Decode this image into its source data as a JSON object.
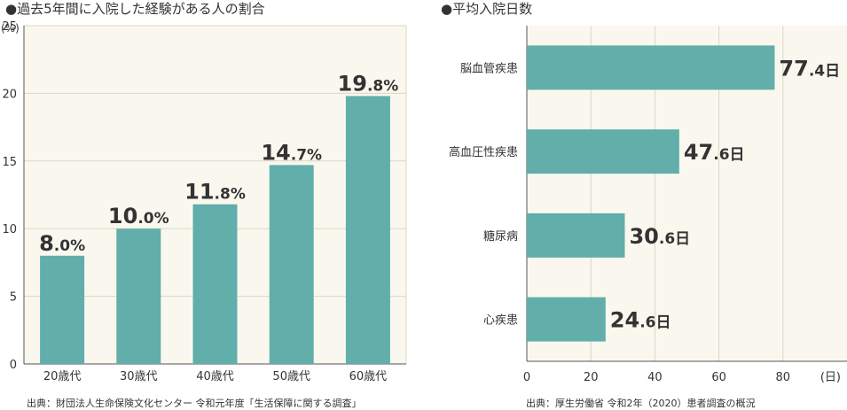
{
  "chart_data": [
    {
      "type": "bar",
      "title": "●過去5年間に入院した経験がある人の割合",
      "unit_label": "(%)",
      "categories": [
        "20歳代",
        "30歳代",
        "40歳代",
        "50歳代",
        "60歳代"
      ],
      "values": [
        8.0,
        10.0,
        11.8,
        14.7,
        19.8
      ],
      "value_labels": [
        {
          "main": "8.0",
          "unit": "%"
        },
        {
          "main": "10.0",
          "unit": "%"
        },
        {
          "main": "11.8",
          "unit": "%"
        },
        {
          "main": "14.7",
          "unit": "%"
        },
        {
          "main": "19.8",
          "unit": "%"
        }
      ],
      "yticks": [
        "0",
        "5",
        "10",
        "15",
        "20",
        "25"
      ],
      "ylim": [
        0,
        25
      ],
      "source": "出典：財団法人生命保険文化センター 令和元年度「生活保障に関する調査」",
      "bar_color": "#62aeaa",
      "panel_color": "#faf8ee",
      "grid_color": "#d9d6c8"
    },
    {
      "type": "bar",
      "orientation": "horizontal",
      "title": "●平均入院日数",
      "unit_label": "(日)",
      "categories": [
        "脳血管疾患",
        "高血圧性疾患",
        "糖尿病",
        "心疾患"
      ],
      "values": [
        77.4,
        47.6,
        30.6,
        24.6
      ],
      "value_labels": [
        {
          "main": "77.4",
          "unit": "日"
        },
        {
          "main": "47.6",
          "unit": "日"
        },
        {
          "main": "30.6",
          "unit": "日"
        },
        {
          "main": "24.6",
          "unit": "日"
        }
      ],
      "xticks": [
        "0",
        "20",
        "40",
        "60",
        "80"
      ],
      "xlim": [
        0,
        100
      ],
      "source": "出典：厚生労働省 令和2年（2020）患者調査の概況",
      "bar_color": "#62aeaa",
      "panel_color": "#faf8ee",
      "grid_color": "#d9d6c8"
    }
  ]
}
